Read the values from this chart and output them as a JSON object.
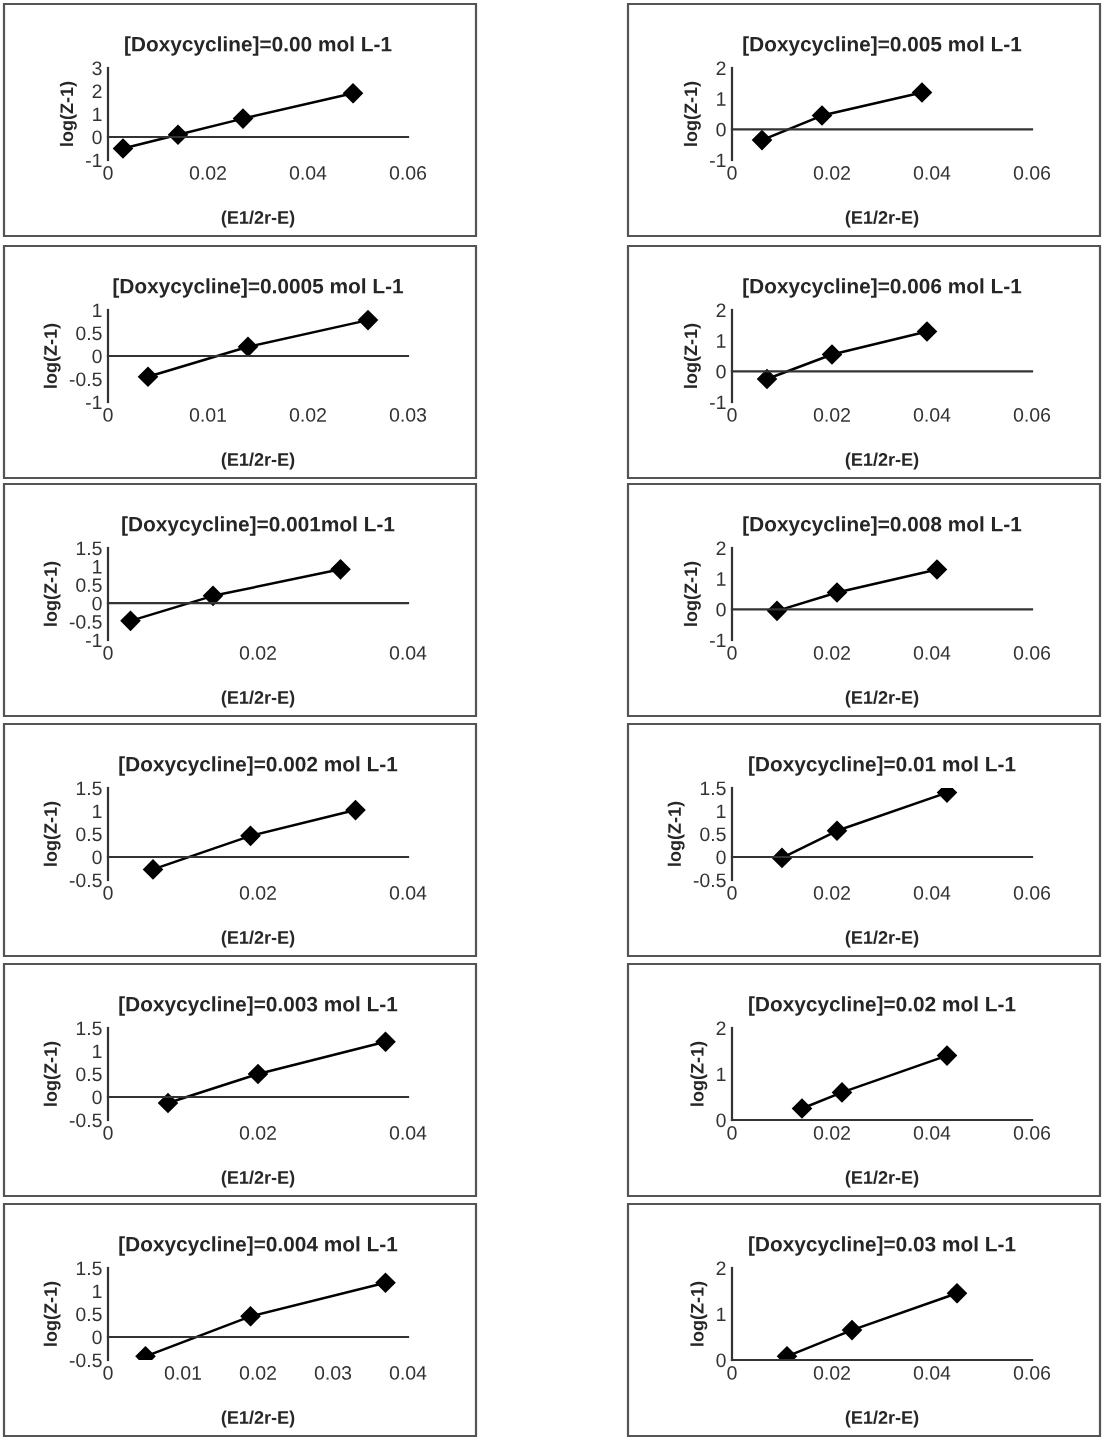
{
  "chart_data": [
    {
      "type": "line",
      "title": "[Doxycycline]=0.00 mol L-1",
      "xlabel": "(E1/2r-E)",
      "ylabel": "log(Z-1)",
      "marker": "diamond",
      "line_style": "solid",
      "color": "#000000",
      "x": [
        0.003,
        0.014,
        0.027,
        0.049
      ],
      "values": [
        -0.5,
        0.1,
        0.8,
        1.9
      ],
      "xlim": [
        0,
        0.06
      ],
      "xticks": [
        0,
        0.02,
        0.04,
        0.06
      ],
      "ylim": [
        -1,
        3
      ],
      "yticks": [
        -1,
        0,
        1,
        2,
        3
      ]
    },
    {
      "type": "line",
      "title": "[Doxycycline]=0.005 mol L-1",
      "xlabel": "(E1/2r-E)",
      "ylabel": "log(Z-1)",
      "marker": "diamond",
      "line_style": "solid",
      "color": "#000000",
      "x": [
        0.006,
        0.018,
        0.038
      ],
      "values": [
        -0.35,
        0.45,
        1.2
      ],
      "xlim": [
        0,
        0.06
      ],
      "xticks": [
        0,
        0.02,
        0.04,
        0.06
      ],
      "ylim": [
        -1,
        2
      ],
      "yticks": [
        -1,
        0,
        1,
        2
      ]
    },
    {
      "type": "line",
      "title": "[Doxycycline]=0.0005 mol L-1",
      "xlabel": "(E1/2r-E)",
      "ylabel": "log(Z-1)",
      "marker": "diamond",
      "line_style": "solid",
      "color": "#000000",
      "x": [
        0.004,
        0.014,
        0.026
      ],
      "values": [
        -0.45,
        0.2,
        0.78
      ],
      "xlim": [
        0,
        0.03
      ],
      "xticks": [
        0,
        0.01,
        0.02,
        0.03
      ],
      "ylim": [
        -1,
        1
      ],
      "yticks": [
        -1,
        -0.5,
        0,
        0.5,
        1
      ]
    },
    {
      "type": "line",
      "title": "[Doxycycline]=0.006 mol L-1",
      "xlabel": "(E1/2r-E)",
      "ylabel": "log(Z-1)",
      "marker": "diamond",
      "line_style": "solid",
      "color": "#000000",
      "x": [
        0.007,
        0.02,
        0.039
      ],
      "values": [
        -0.25,
        0.55,
        1.3
      ],
      "xlim": [
        0,
        0.06
      ],
      "xticks": [
        0,
        0.02,
        0.04,
        0.06
      ],
      "ylim": [
        -1,
        2
      ],
      "yticks": [
        -1,
        0,
        1,
        2
      ]
    },
    {
      "type": "line",
      "title": "[Doxycycline]=0.001mol L-1",
      "xlabel": "(E1/2r-E)",
      "ylabel": "log(Z-1)",
      "marker": "diamond",
      "line_style": "solid",
      "color": "#000000",
      "x": [
        0.003,
        0.014,
        0.031
      ],
      "values": [
        -0.48,
        0.2,
        0.92
      ],
      "xlim": [
        0,
        0.04
      ],
      "xticks": [
        0,
        0.02,
        0.04
      ],
      "ylim": [
        -1,
        1.5
      ],
      "yticks": [
        -1,
        -0.5,
        0,
        0.5,
        1,
        1.5
      ]
    },
    {
      "type": "line",
      "title": "[Doxycycline]=0.008 mol L-1",
      "xlabel": "(E1/2r-E)",
      "ylabel": "log(Z-1)",
      "marker": "diamond",
      "line_style": "solid",
      "color": "#000000",
      "x": [
        0.009,
        0.021,
        0.041
      ],
      "values": [
        -0.05,
        0.55,
        1.3
      ],
      "xlim": [
        0,
        0.06
      ],
      "xticks": [
        0,
        0.02,
        0.04,
        0.06
      ],
      "ylim": [
        -1,
        2
      ],
      "yticks": [
        -1,
        0,
        1,
        2
      ]
    },
    {
      "type": "line",
      "title": "[Doxycycline]=0.002 mol L-1",
      "xlabel": "(E1/2r-E)",
      "ylabel": "log(Z-1)",
      "marker": "diamond",
      "line_style": "solid",
      "color": "#000000",
      "x": [
        0.006,
        0.019,
        0.033
      ],
      "values": [
        -0.27,
        0.46,
        1.02
      ],
      "xlim": [
        0,
        0.04
      ],
      "xticks": [
        0,
        0.02,
        0.04
      ],
      "ylim": [
        -0.5,
        1.5
      ],
      "yticks": [
        -0.5,
        0,
        0.5,
        1,
        1.5
      ]
    },
    {
      "type": "line",
      "title": "[Doxycycline]=0.01 mol L-1",
      "xlabel": "(E1/2r-E)",
      "ylabel": "log(Z-1)",
      "marker": "diamond",
      "line_style": "solid",
      "color": "#000000",
      "x": [
        0.01,
        0.021,
        0.043
      ],
      "values": [
        -0.02,
        0.57,
        1.4
      ],
      "xlim": [
        0,
        0.06
      ],
      "xticks": [
        0,
        0.02,
        0.04,
        0.06
      ],
      "ylim": [
        -0.5,
        1.5
      ],
      "yticks": [
        -0.5,
        0,
        0.5,
        1,
        1.5
      ]
    },
    {
      "type": "line",
      "title": "[Doxycycline]=0.003 mol L-1",
      "xlabel": "(E1/2r-E)",
      "ylabel": "log(Z-1)",
      "marker": "diamond",
      "line_style": "solid",
      "color": "#000000",
      "x": [
        0.008,
        0.02,
        0.037
      ],
      "values": [
        -0.13,
        0.5,
        1.2
      ],
      "xlim": [
        0,
        0.04
      ],
      "xticks": [
        0,
        0.02,
        0.04
      ],
      "ylim": [
        -0.5,
        1.5
      ],
      "yticks": [
        -0.5,
        0,
        0.5,
        1,
        1.5
      ]
    },
    {
      "type": "line",
      "title": "[Doxycycline]=0.02 mol L-1",
      "xlabel": "(E1/2r-E)",
      "ylabel": "log(Z-1)",
      "marker": "diamond",
      "line_style": "solid",
      "color": "#000000",
      "x": [
        0.014,
        0.022,
        0.043
      ],
      "values": [
        0.25,
        0.6,
        1.4
      ],
      "xlim": [
        0,
        0.06
      ],
      "xticks": [
        0,
        0.02,
        0.04,
        0.06
      ],
      "ylim": [
        0,
        2
      ],
      "yticks": [
        0,
        1,
        2
      ]
    },
    {
      "type": "line",
      "title": "[Doxycycline]=0.004 mol L-1",
      "xlabel": "(E1/2r-E)",
      "ylabel": "log(Z-1)",
      "marker": "diamond",
      "line_style": "solid",
      "color": "#000000",
      "x": [
        0.005,
        0.019,
        0.037
      ],
      "values": [
        -0.42,
        0.45,
        1.18
      ],
      "xlim": [
        0,
        0.04
      ],
      "xticks": [
        0,
        0.01,
        0.02,
        0.03,
        0.04
      ],
      "ylim": [
        -0.5,
        1.5
      ],
      "yticks": [
        -0.5,
        0,
        0.5,
        1,
        1.5
      ]
    },
    {
      "type": "line",
      "title": "[Doxycycline]=0.03 mol L-1",
      "xlabel": "(E1/2r-E)",
      "ylabel": "log(Z-1)",
      "marker": "diamond",
      "line_style": "solid",
      "color": "#000000",
      "x": [
        0.011,
        0.024,
        0.045
      ],
      "values": [
        0.08,
        0.65,
        1.45
      ],
      "xlim": [
        0,
        0.06
      ],
      "xticks": [
        0,
        0.02,
        0.04,
        0.06
      ],
      "ylim": [
        0,
        2
      ],
      "yticks": [
        0,
        1,
        2
      ]
    }
  ]
}
